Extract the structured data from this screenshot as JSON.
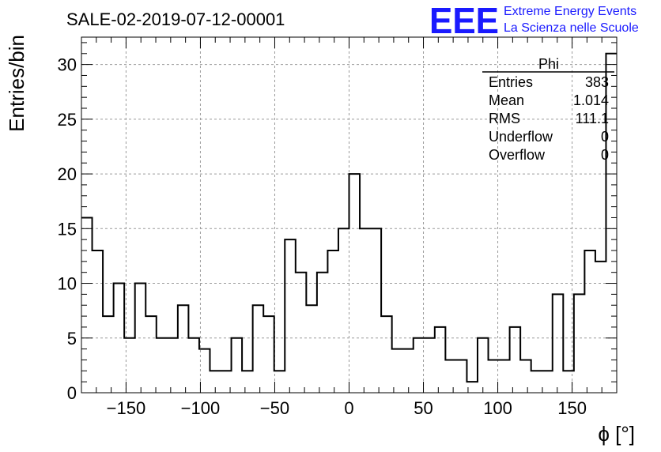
{
  "chart_data": {
    "type": "histogram",
    "title": "SALE-02-2019-07-12-00001",
    "xlabel": "ϕ [°]",
    "ylabel": "Entries/bin",
    "xlim": [
      -180,
      180
    ],
    "ylim": [
      0,
      32.5
    ],
    "xticks": [
      -150,
      -100,
      -50,
      0,
      50,
      100,
      150
    ],
    "xtick_labels": [
      "−150",
      "−100",
      "−50",
      "0",
      "50",
      "100",
      "150"
    ],
    "yticks": [
      0,
      5,
      10,
      15,
      20,
      25,
      30
    ],
    "ytick_labels": [
      "0",
      "5",
      "10",
      "15",
      "20",
      "25",
      "30"
    ],
    "grid": true,
    "bin_width": 7.2,
    "bin_start": -180,
    "values": [
      16,
      13,
      7,
      10,
      5,
      10,
      7,
      5,
      5,
      8,
      5,
      4,
      2,
      2,
      5,
      2,
      8,
      7,
      2,
      14,
      11,
      8,
      11,
      13,
      15,
      20,
      15,
      15,
      7,
      4,
      4,
      5,
      5,
      6,
      3,
      3,
      1,
      5,
      3,
      3,
      6,
      3,
      2,
      2,
      9,
      2,
      9,
      13,
      12,
      31
    ],
    "line_color": "#000000",
    "stats": {
      "name": "Phi",
      "rows": [
        {
          "label": "Entries",
          "value": "383"
        },
        {
          "label": "Mean",
          "value": "1.014"
        },
        {
          "label": "RMS",
          "value": "111.1"
        },
        {
          "label": "Underflow",
          "value": "0"
        },
        {
          "label": "Overflow",
          "value": "0"
        }
      ]
    }
  },
  "logo": {
    "mark": "EEE",
    "line1": "Extreme Energy Events",
    "line2": "La Scienza nelle Scuole",
    "color": "#1a1aff"
  }
}
